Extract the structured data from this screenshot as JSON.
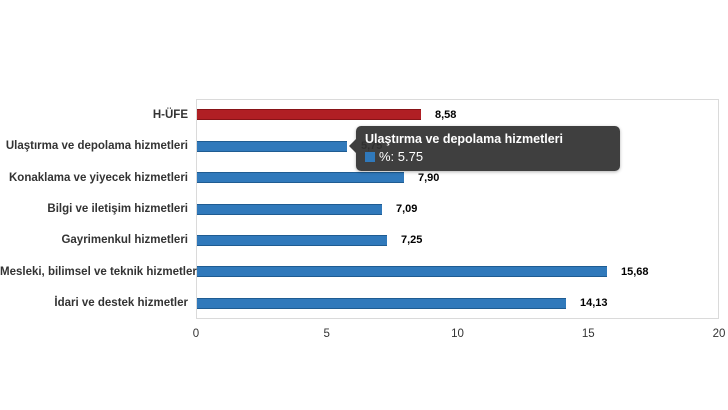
{
  "chart_data": {
    "type": "bar",
    "orientation": "horizontal",
    "title": "",
    "categories": [
      "H-ÜFE",
      "Ulaştırma ve depolama hizmetleri",
      "Konaklama ve yiyecek hizmetleri",
      "Bilgi ve iletişim hizmetleri",
      "Gayrimenkul hizmetleri",
      "Mesleki, bilimsel ve teknik hizmetler",
      "İdari ve destek hizmetler"
    ],
    "values": [
      8.58,
      5.75,
      7.9,
      7.09,
      7.25,
      15.68,
      14.13
    ],
    "value_labels": [
      "8,58",
      "5,75",
      "7,90",
      "7,09",
      "7,25",
      "15,68",
      "14,13"
    ],
    "bar_colors": [
      "#b01f24",
      "#3079bb",
      "#3079bb",
      "#3079bb",
      "#3079bb",
      "#3079bb",
      "#3079bb"
    ],
    "bar_border_colors": [
      "#871317",
      "#1f5c92",
      "#1f5c92",
      "#1f5c92",
      "#1f5c92",
      "#1f5c92",
      "#1f5c92"
    ],
    "xlabel": "",
    "ylabel": "",
    "xlim": [
      0,
      20
    ],
    "x_ticks": [
      "0",
      "5",
      "10",
      "15",
      "20"
    ],
    "grid": false,
    "legend": "none"
  },
  "tooltip": {
    "title": "Ulaştırma ve depolama hizmetleri",
    "value_text": "%: 5.75",
    "swatch_color": "#3079bb",
    "background": "#333333"
  },
  "colors": {
    "accent_red": "#b01f24",
    "series_blue": "#3079bb",
    "plot_border": "#dadada",
    "label_text": "#333333"
  }
}
